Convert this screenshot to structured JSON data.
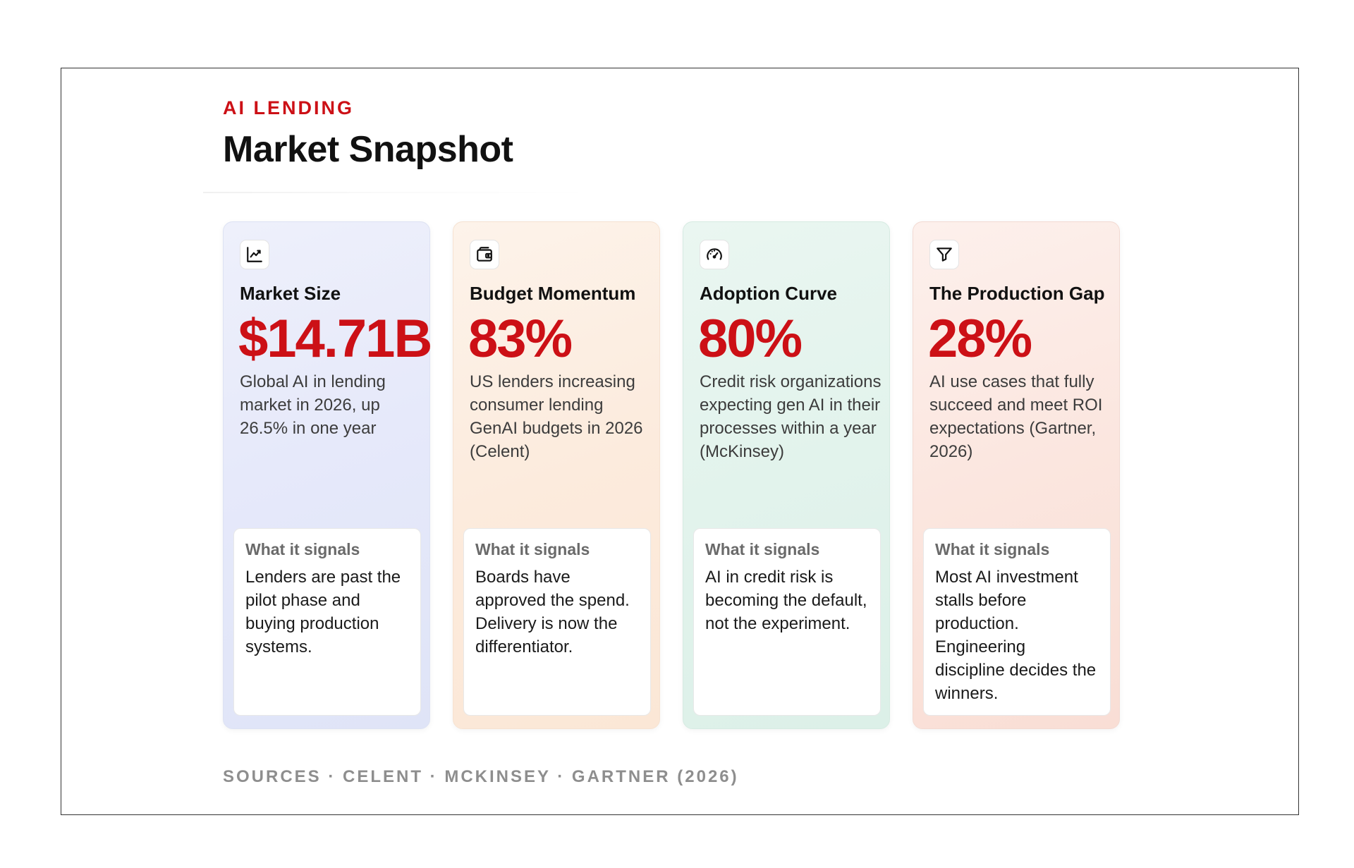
{
  "header": {
    "eyebrow": "AI LENDING",
    "title": "Market Snapshot"
  },
  "colors": {
    "accent": "#cc1016",
    "card_market_size": "#e6e9fa",
    "card_budget_momentum": "#fcebdd",
    "card_adoption_curve": "#e2f3ec",
    "card_production_gap": "#fbe6df"
  },
  "cards": [
    {
      "icon": "trend-chart-icon",
      "title": "Market Size",
      "metric": "$14.71B",
      "description": "Global AI in lending market in 2026, up 26.5% in one year",
      "signal_label": "What it signals",
      "signal_text": "Lenders are past the pilot phase and buying production systems."
    },
    {
      "icon": "wallet-icon",
      "title": "Budget Momentum",
      "metric": "83%",
      "description": "US lenders increasing consumer lending GenAI budgets in 2026 (Celent)",
      "signal_label": "What it signals",
      "signal_text": "Boards have approved the spend. Delivery is now the differentiator."
    },
    {
      "icon": "gauge-icon",
      "title": "Adoption Curve",
      "metric": "80%",
      "description": "Credit risk organizations expecting gen AI in their processes within a year (McKinsey)",
      "signal_label": "What it signals",
      "signal_text": "AI in credit risk is becoming the default, not the experiment."
    },
    {
      "icon": "funnel-icon",
      "title": "The Production Gap",
      "metric": "28%",
      "description": "AI use cases that fully succeed and meet ROI expectations (Gartner, 2026)",
      "signal_label": "What it signals",
      "signal_text": "Most AI investment stalls before production. Engineering discipline decides the winners."
    }
  ],
  "footer": {
    "sources": "SOURCES · CELENT · MCKINSEY · GARTNER (2026)"
  }
}
